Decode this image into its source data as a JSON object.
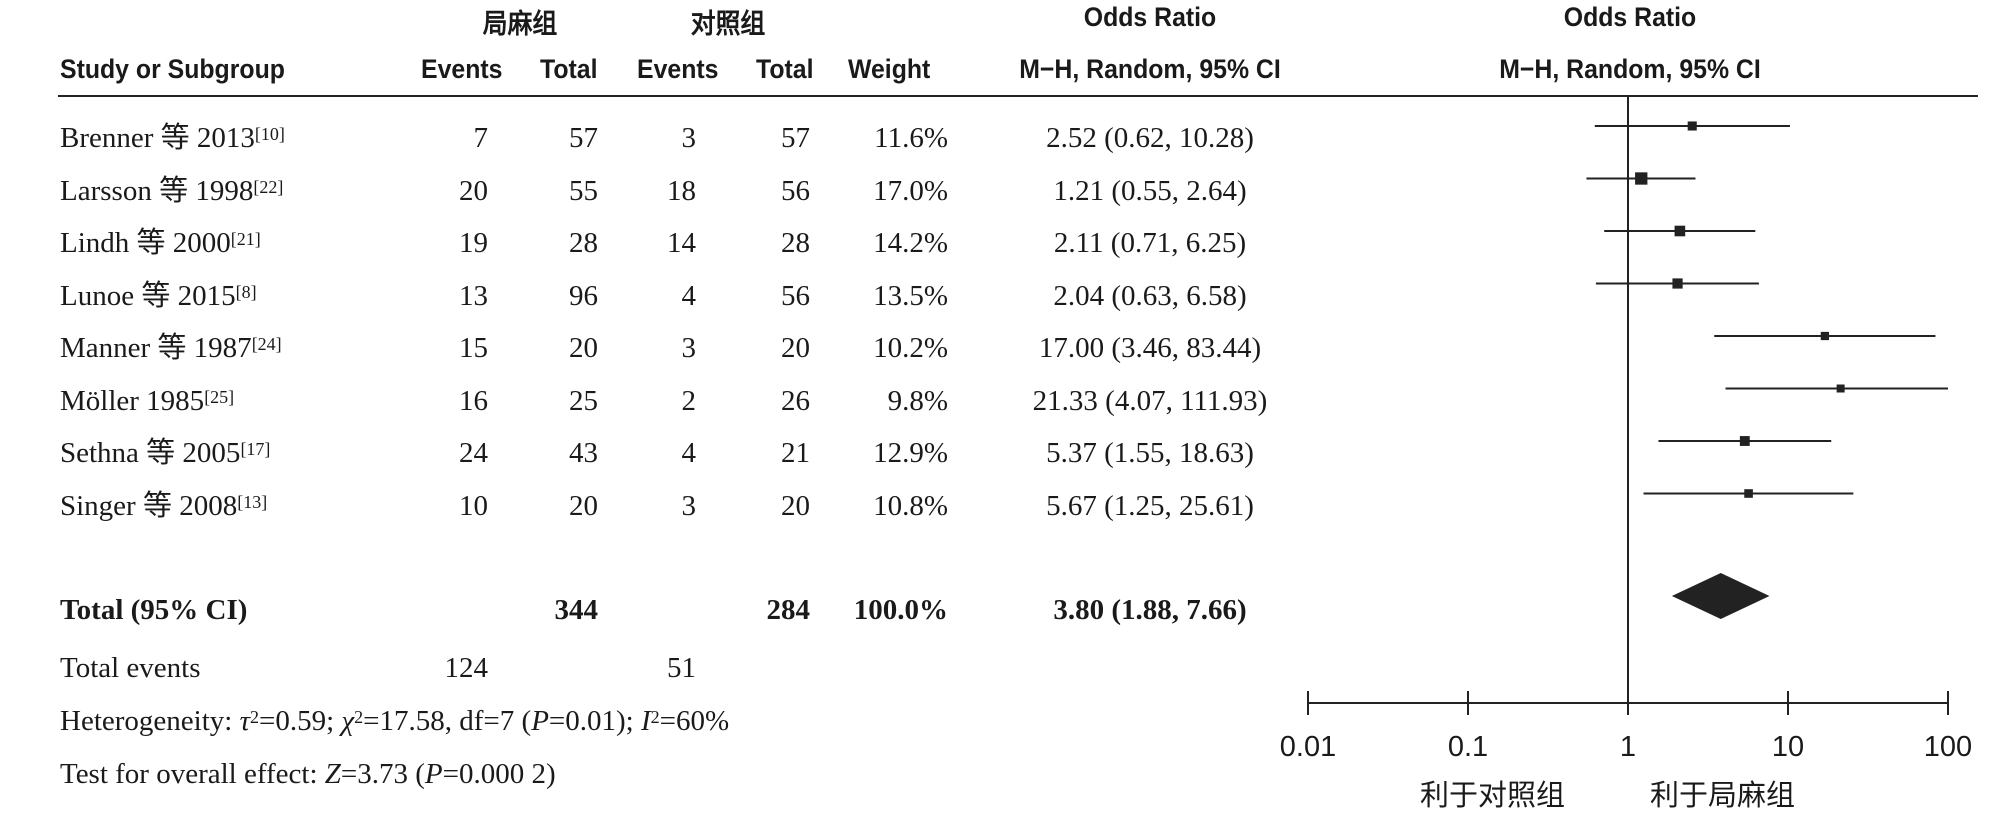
{
  "header": {
    "group1": "局麻组",
    "group2": "对照组",
    "col_study": "Study or Subgroup",
    "col_events1": "Events",
    "col_total1": "Total",
    "col_events2": "Events",
    "col_total2": "Total",
    "col_weight": "Weight",
    "or_title": "Odds Ratio",
    "or_method": "M−H, Random, 95% CI",
    "plot_title": "Odds Ratio",
    "plot_method": "M−H, Random, 95% CI"
  },
  "rows": [
    {
      "name": "Brenner 等 2013",
      "ref": "[10]",
      "e1": "7",
      "t1": "57",
      "e2": "3",
      "t2": "57",
      "weight": "11.6%",
      "ci_text": "2.52 (0.62, 10.28)"
    },
    {
      "name": "Larsson 等 1998",
      "ref": "[22]",
      "e1": "20",
      "t1": "55",
      "e2": "18",
      "t2": "56",
      "weight": "17.0%",
      "ci_text": "1.21 (0.55, 2.64)"
    },
    {
      "name": "Lindh 等 2000",
      "ref": "[21]",
      "e1": "19",
      "t1": "28",
      "e2": "14",
      "t2": "28",
      "weight": "14.2%",
      "ci_text": "2.11 (0.71, 6.25)"
    },
    {
      "name": "Lunoe 等 2015",
      "ref": "[8]",
      "e1": "13",
      "t1": "96",
      "e2": "4",
      "t2": "56",
      "weight": "13.5%",
      "ci_text": "2.04 (0.63, 6.58)"
    },
    {
      "name": "Manner 等 1987",
      "ref": "[24]",
      "e1": "15",
      "t1": "20",
      "e2": "3",
      "t2": "20",
      "weight": "10.2%",
      "ci_text": "17.00 (3.46, 83.44)"
    },
    {
      "name": "Möller 1985",
      "ref": "[25]",
      "e1": "16",
      "t1": "25",
      "e2": "2",
      "t2": "26",
      "weight": "9.8%",
      "ci_text": "21.33 (4.07, 111.93)"
    },
    {
      "name": "Sethna 等 2005",
      "ref": "[17]",
      "e1": "24",
      "t1": "43",
      "e2": "4",
      "t2": "21",
      "weight": "12.9%",
      "ci_text": "5.37 (1.55, 18.63)"
    },
    {
      "name": "Singer 等 2008",
      "ref": "[13]",
      "e1": "10",
      "t1": "20",
      "e2": "3",
      "t2": "20",
      "weight": "10.8%",
      "ci_text": "5.67 (1.25, 25.61)"
    }
  ],
  "total": {
    "label": "Total (95% CI)",
    "t1": "344",
    "t2": "284",
    "weight": "100.0%",
    "ci_text": "3.80 (1.88, 7.66)"
  },
  "total_events": {
    "label": "Total events",
    "e1": "124",
    "e2": "51"
  },
  "footer": {
    "heterogeneity": {
      "lead": "Heterogeneity: ",
      "tau": "τ",
      "sup2a": "2",
      "v1": "=0.59; ",
      "chi": "χ",
      "sup2b": "2",
      "v2": "=17.58, df=7 (",
      "p1": "P",
      "v3": "=0.01); ",
      "i": "I",
      "sup2c": "2",
      "v4": "=60%"
    },
    "overall": {
      "lead": "Test for overall effect: ",
      "z": "Z",
      "v1": "=3.73 (",
      "p": "P",
      "v2": "=0.000 2)"
    }
  },
  "axis": {
    "scale": "log",
    "ticks": [
      {
        "value": 0.01,
        "label": "0.01"
      },
      {
        "value": 0.1,
        "label": "0.1"
      },
      {
        "value": 1,
        "label": "1"
      },
      {
        "value": 10,
        "label": "10"
      },
      {
        "value": 100,
        "label": "100"
      }
    ],
    "favours_left": "利于对照组",
    "favours_right": "利于局麻组"
  },
  "chart_data": {
    "type": "forest",
    "scale": "log",
    "xlim": [
      0.01,
      100
    ],
    "null_line": 1,
    "studies": [
      {
        "name": "Brenner 等 2013",
        "or": 2.52,
        "lo": 0.62,
        "hi": 10.28,
        "weight": 11.6
      },
      {
        "name": "Larsson 等 1998",
        "or": 1.21,
        "lo": 0.55,
        "hi": 2.64,
        "weight": 17.0
      },
      {
        "name": "Lindh 等 2000",
        "or": 2.11,
        "lo": 0.71,
        "hi": 6.25,
        "weight": 14.2
      },
      {
        "name": "Lunoe 等 2015",
        "or": 2.04,
        "lo": 0.63,
        "hi": 6.58,
        "weight": 13.5
      },
      {
        "name": "Manner 等 1987",
        "or": 17.0,
        "lo": 3.46,
        "hi": 83.44,
        "weight": 10.2
      },
      {
        "name": "Möller 1985",
        "or": 21.33,
        "lo": 4.07,
        "hi": 111.93,
        "weight": 9.8
      },
      {
        "name": "Sethna 等 2005",
        "or": 5.37,
        "lo": 1.55,
        "hi": 18.63,
        "weight": 12.9
      },
      {
        "name": "Singer 等 2008",
        "or": 5.67,
        "lo": 1.25,
        "hi": 25.61,
        "weight": 10.8
      }
    ],
    "pooled": {
      "or": 3.8,
      "lo": 1.88,
      "hi": 7.66
    }
  }
}
